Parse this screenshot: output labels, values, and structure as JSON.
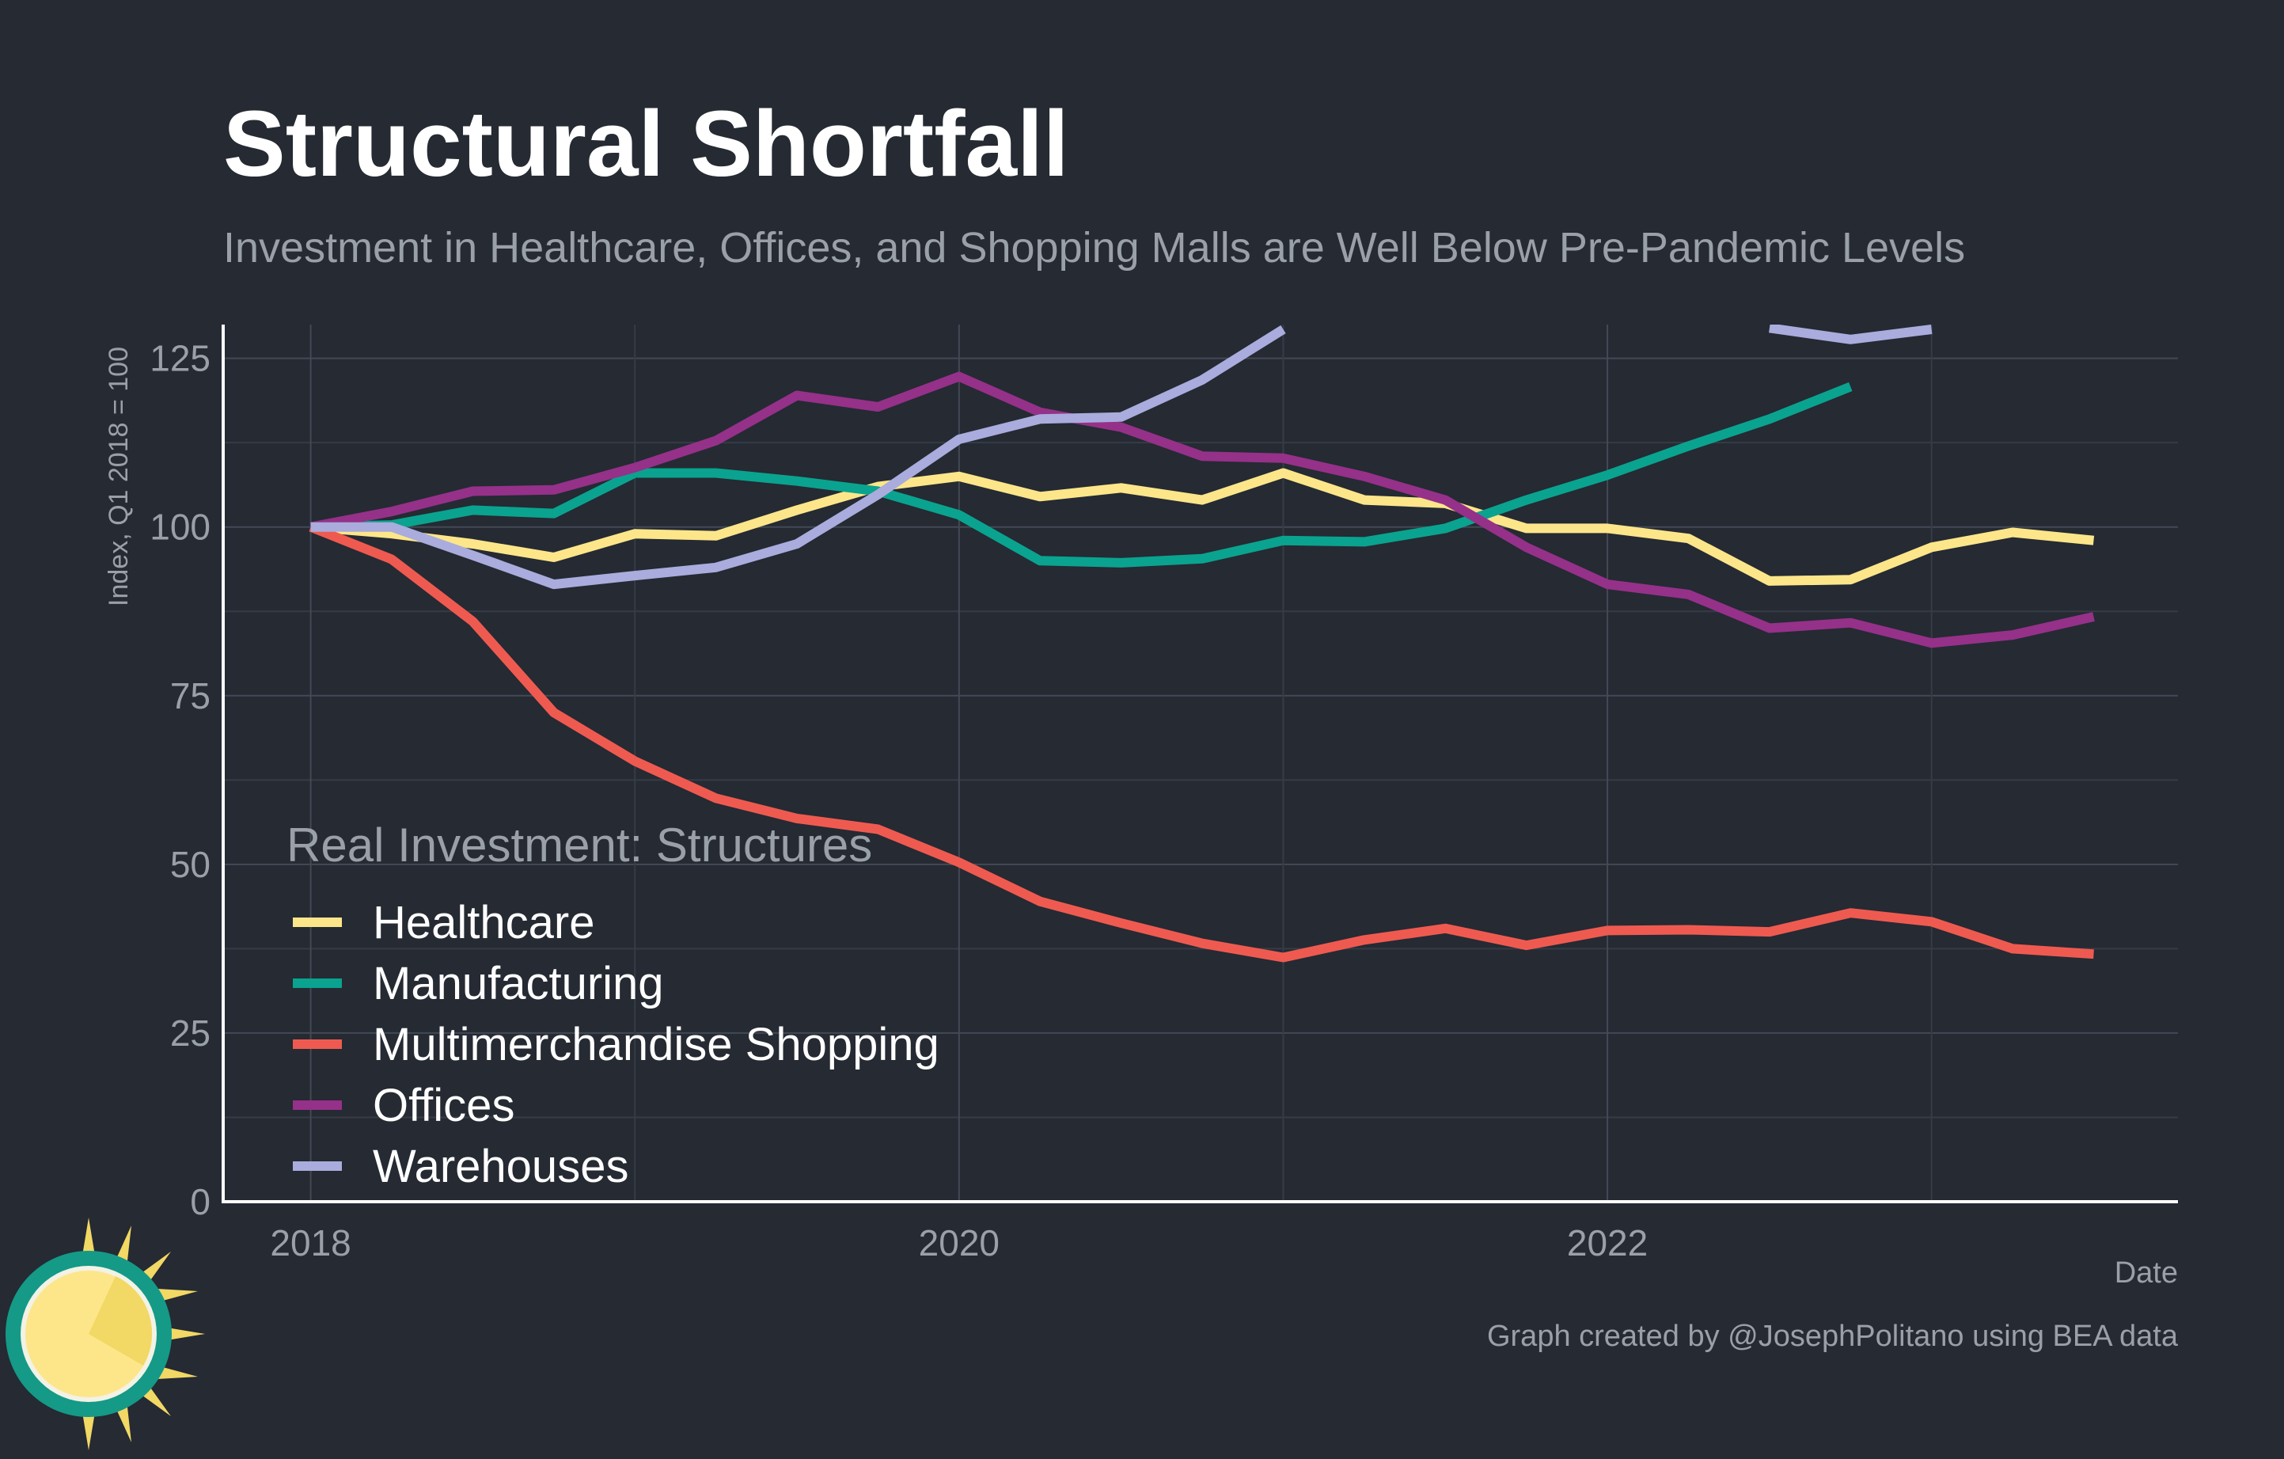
{
  "chart_data": {
    "type": "line",
    "title": "Structural Shortfall",
    "subtitle": "Investment in Healthcare, Offices, and Shopping Malls are Well Below Pre-Pandemic Levels",
    "ylabel": "Index, Q1 2018 = 100",
    "xlabel": "Date",
    "caption": "Graph created by @JosephPolitano using BEA data",
    "ylim": [
      0,
      130
    ],
    "xlim": [
      2017.73,
      2023.76
    ],
    "y_ticks": [
      0,
      25,
      50,
      75,
      100,
      125
    ],
    "x_ticks": [
      2018,
      2020,
      2022
    ],
    "grid": true,
    "legend": {
      "title": "Real Investment: Structures",
      "position": "bottom-left"
    },
    "x": [
      "2018-Q1",
      "2018-Q2",
      "2018-Q3",
      "2018-Q4",
      "2019-Q1",
      "2019-Q2",
      "2019-Q3",
      "2019-Q4",
      "2020-Q1",
      "2020-Q2",
      "2020-Q3",
      "2020-Q4",
      "2021-Q1",
      "2021-Q2",
      "2021-Q3",
      "2021-Q4",
      "2022-Q1",
      "2022-Q2",
      "2022-Q3",
      "2022-Q4",
      "2023-Q1",
      "2023-Q2",
      "2023-Q3"
    ],
    "series": [
      {
        "name": "Healthcare",
        "color": "#fde68a",
        "values": [
          100,
          99,
          97.5,
          95.5,
          99,
          98.7,
          102.5,
          106,
          107.5,
          104.5,
          105.8,
          104,
          108,
          104,
          103.5,
          99.8,
          99.8,
          98.3,
          92,
          92.2,
          97,
          99.2,
          98
        ]
      },
      {
        "name": "Manufacturing",
        "color": "#0aa38f",
        "values": [
          100,
          100.3,
          102.5,
          102,
          108,
          108,
          106.8,
          105.3,
          101.8,
          95,
          94.7,
          95.3,
          98,
          97.8,
          99.8,
          104,
          107.7,
          112,
          116,
          120.8,
          null,
          null,
          null
        ]
      },
      {
        "name": "Multimerchandise Shopping",
        "color": "#ef5a50",
        "values": [
          100,
          95.2,
          86,
          72.5,
          65.3,
          59.8,
          56.8,
          55.2,
          50.3,
          44.5,
          41.3,
          38.3,
          36.2,
          38.8,
          40.5,
          38,
          40.2,
          40.3,
          40,
          42.8,
          41.5,
          37.5,
          36.7
        ]
      },
      {
        "name": "Offices",
        "color": "#953189",
        "values": [
          100,
          102.3,
          105.3,
          105.5,
          108.8,
          112.8,
          119.5,
          117.8,
          122.3,
          117,
          114.8,
          110.5,
          110.2,
          107.5,
          104,
          97,
          91.5,
          90,
          85,
          85.8,
          82.8,
          84,
          86.7
        ]
      },
      {
        "name": "Warehouses",
        "color": "#a9acdc",
        "values": [
          100,
          100,
          95.8,
          91.5,
          92.8,
          94,
          97.5,
          104.8,
          113,
          116,
          116.3,
          121.8,
          129.3,
          null,
          null,
          null,
          null,
          null,
          129.5,
          127.8,
          129.3,
          null,
          null
        ]
      }
    ]
  },
  "logo": {
    "name": "sun-logo-icon"
  }
}
